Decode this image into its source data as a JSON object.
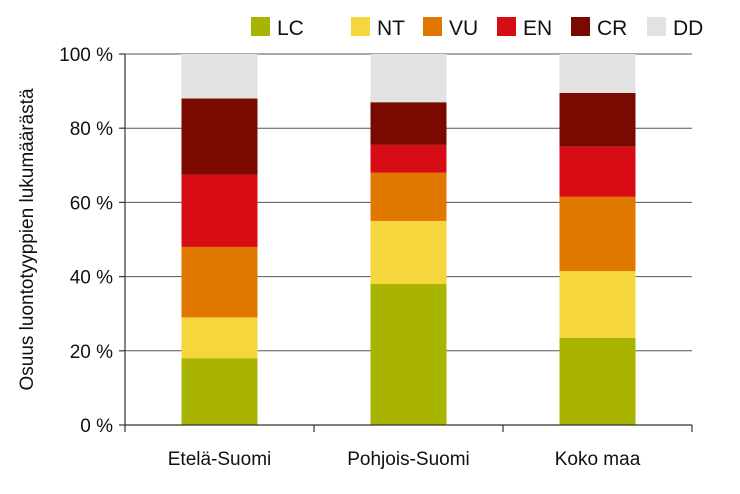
{
  "chart_data": {
    "type": "bar",
    "stacked": true,
    "categories": [
      "Etelä-Suomi",
      "Pohjois-Suomi",
      "Koko maa"
    ],
    "series": [
      {
        "name": "LC",
        "color": "#a8b400",
        "values": [
          18,
          38,
          23.5
        ]
      },
      {
        "name": "NT",
        "color": "#f5d63d",
        "values": [
          11,
          17,
          18
        ]
      },
      {
        "name": "VU",
        "color": "#e07800",
        "values": [
          19,
          13,
          20
        ]
      },
      {
        "name": "EN",
        "color": "#d70c14",
        "values": [
          19.5,
          7.5,
          13.5
        ]
      },
      {
        "name": "CR",
        "color": "#7a0a00",
        "values": [
          20.5,
          11.5,
          14.5
        ]
      },
      {
        "name": "DD",
        "color": "#e2e2e2",
        "values": [
          12,
          13,
          10.5
        ]
      }
    ],
    "ylabel": "Osuus luontotyyppien lukumäärästä",
    "xlabel": "",
    "ylim": [
      0,
      100
    ],
    "yticks": [
      "0 %",
      "20 %",
      "40 %",
      "60 %",
      "80 %",
      "100 %"
    ],
    "grid": true,
    "legend_position": "top"
  }
}
